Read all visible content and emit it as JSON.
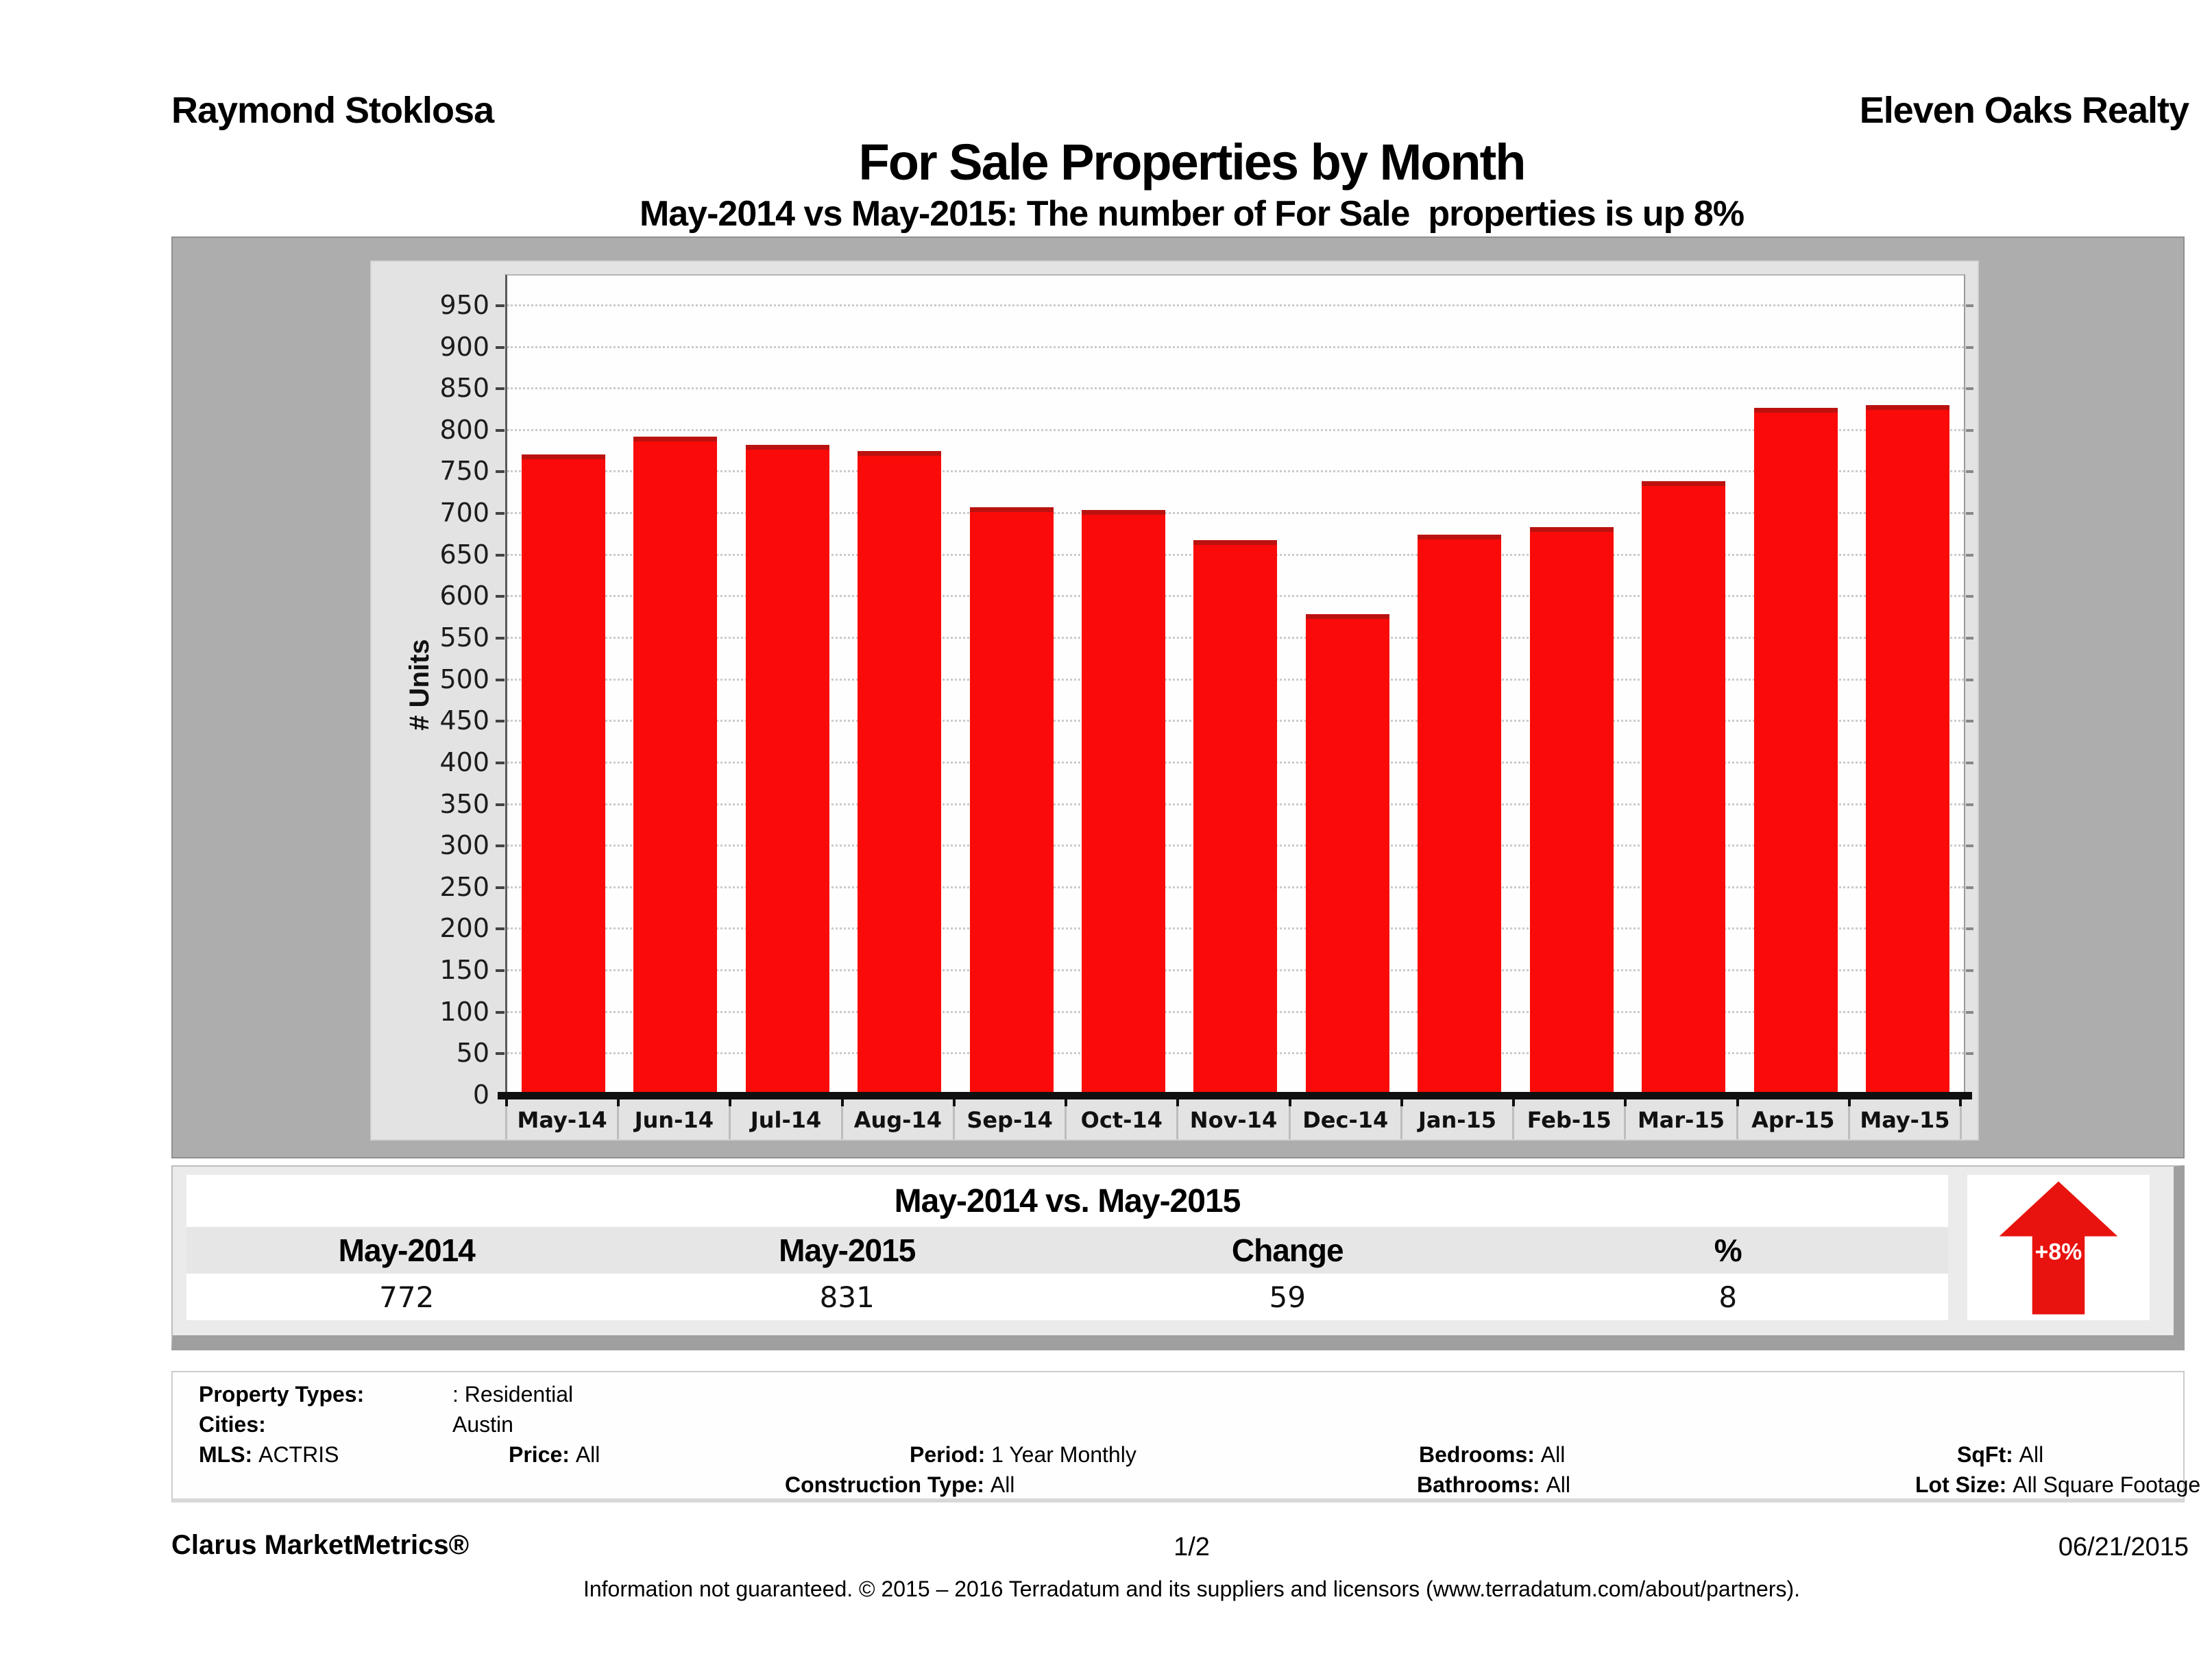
{
  "header": {
    "agent": "Raymond Stoklosa",
    "company": "Eleven Oaks Realty"
  },
  "title": "For Sale Properties by Month",
  "subtitle": "May-2014 vs May-2015: The number of For Sale  properties is up 8%",
  "chart_data": {
    "type": "bar",
    "title": "For Sale Properties by Month",
    "categories": [
      "May-14",
      "Jun-14",
      "Jul-14",
      "Aug-14",
      "Sep-14",
      "Oct-14",
      "Nov-14",
      "Dec-14",
      "Jan-15",
      "Feb-15",
      "Mar-15",
      "Apr-15",
      "May-15"
    ],
    "values": [
      772,
      793,
      783,
      776,
      708,
      705,
      669,
      580,
      675,
      684,
      740,
      828,
      831
    ],
    "xlabel": "",
    "ylabel": "# Units",
    "ylim": [
      0,
      987
    ],
    "yticks": {
      "start": 0,
      "end": 950,
      "step": 50
    },
    "grid": true,
    "legend": false
  },
  "colors": {
    "bar": "#fa0a08",
    "bar_top": "#bb1210",
    "arrow": "#e8130e",
    "arrow_text": "#ffffff"
  },
  "summary_table": {
    "title": "May-2014 vs. May-2015",
    "columns": [
      "May-2014",
      "May-2015",
      "Change",
      "%"
    ],
    "values": [
      "772",
      "831",
      "59",
      "8"
    ],
    "arrow_label": "+8%",
    "arrow_direction": "up"
  },
  "parameters": {
    "property_types_label": "Property Types:",
    "property_types_value": ": Residential",
    "cities_label": "Cities:",
    "cities_value": "Austin",
    "row3": [
      {
        "label": "MLS:",
        "value": "ACTRIS"
      },
      {
        "label": "Price:",
        "value": "All"
      },
      {
        "label": "Period:",
        "value": "1 Year Monthly"
      },
      {
        "label": "Bedrooms:",
        "value": "All"
      },
      {
        "label": "SqFt:",
        "value": "All"
      }
    ],
    "row4": [
      {
        "label": "Construction Type:",
        "value": "All"
      },
      {
        "label": "Bathrooms:",
        "value": "All"
      },
      {
        "label": "Lot Size:",
        "value": "All Square Footage"
      }
    ]
  },
  "footer": {
    "brand": "Clarus MarketMetrics®",
    "page": "1/2",
    "date": "06/21/2015",
    "disclaimer": "Information not guaranteed. © 2015 – 2016 Terradatum and its suppliers and licensors (www.terradatum.com/about/partners)."
  }
}
